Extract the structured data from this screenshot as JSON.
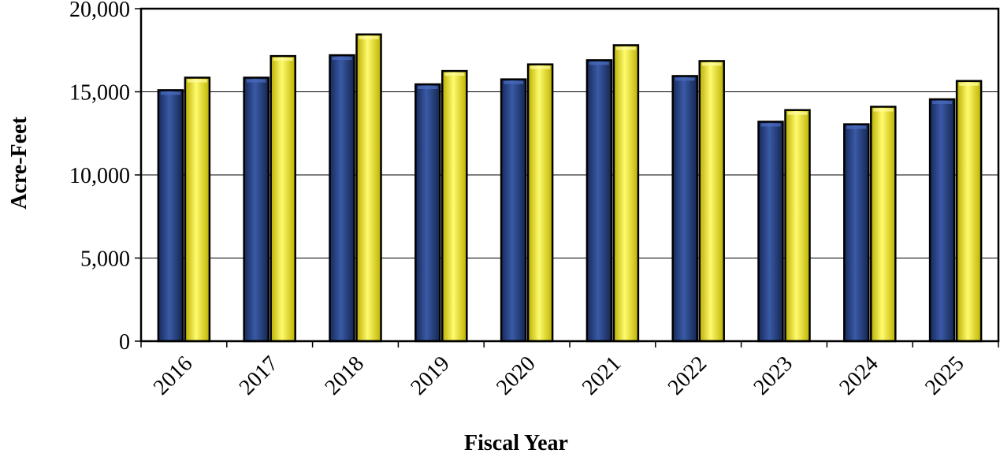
{
  "chart_data": {
    "type": "bar",
    "title": "",
    "xlabel": "Fiscal Year",
    "ylabel": "Acre-Feet",
    "categories": [
      "2016",
      "2017",
      "2018",
      "2019",
      "2020",
      "2021",
      "2022",
      "2023",
      "2024",
      "2025"
    ],
    "series": [
      {
        "color": "#1f3a78",
        "values": [
          15100,
          15850,
          17200,
          15450,
          15750,
          16900,
          15950,
          13200,
          13050,
          14550
        ]
      },
      {
        "color": "#f2ea1a",
        "values": [
          15850,
          17150,
          18450,
          16250,
          16650,
          17800,
          16850,
          13900,
          14100,
          15650
        ]
      }
    ],
    "ylim": [
      0,
      20000
    ],
    "yticks": [
      0,
      5000,
      10000,
      15000,
      20000
    ],
    "ytick_labels": [
      "0",
      "5,000",
      "10,000",
      "15,000",
      "20,000"
    ],
    "grid": true,
    "legend": "none"
  }
}
